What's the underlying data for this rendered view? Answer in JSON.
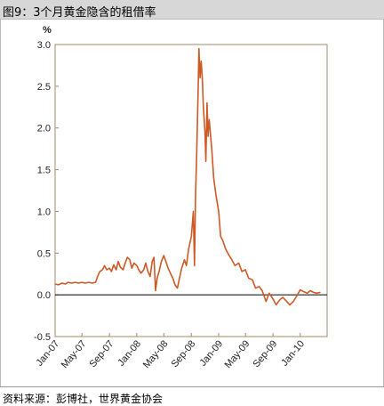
{
  "header": {
    "title": "图9：3个月黄金隐含的租借率"
  },
  "footer": {
    "source": "资料来源：彭博社，世界黄金协会"
  },
  "chart_data": {
    "type": "line",
    "unit_label": "%",
    "ylim": [
      -0.5,
      3.0
    ],
    "xlim": [
      "2007-01-01",
      "2010-05-01"
    ],
    "grid": false,
    "legend": "none",
    "zero_line": true,
    "line_color": "#cc5a25",
    "y_ticks": [
      "3.0",
      "2.5",
      "2.0",
      "1.5",
      "1.0",
      "0.5",
      "0.0",
      "-0.5"
    ],
    "y_tick_values": [
      3.0,
      2.5,
      2.0,
      1.5,
      1.0,
      0.5,
      0.0,
      -0.5
    ],
    "x_ticks": [
      "Jan-07",
      "May-07",
      "Sep-07",
      "Jan-08",
      "May-08",
      "Sep-08",
      "Jan-09",
      "May-09",
      "Sep-09",
      "Jan-10"
    ],
    "x_tick_dates": [
      "2007-01-01",
      "2007-05-01",
      "2007-09-01",
      "2008-01-01",
      "2008-05-01",
      "2008-09-01",
      "2009-01-01",
      "2009-05-01",
      "2009-09-01",
      "2010-01-01"
    ],
    "series": [
      {
        "points": [
          [
            "2007-01-01",
            0.13
          ],
          [
            "2007-01-15",
            0.12
          ],
          [
            "2007-02-01",
            0.14
          ],
          [
            "2007-02-15",
            0.13
          ],
          [
            "2007-03-01",
            0.15
          ],
          [
            "2007-03-15",
            0.14
          ],
          [
            "2007-04-01",
            0.15
          ],
          [
            "2007-04-15",
            0.14
          ],
          [
            "2007-05-01",
            0.15
          ],
          [
            "2007-05-15",
            0.14
          ],
          [
            "2007-06-01",
            0.15
          ],
          [
            "2007-06-15",
            0.14
          ],
          [
            "2007-07-01",
            0.15
          ],
          [
            "2007-07-10",
            0.22
          ],
          [
            "2007-07-20",
            0.28
          ],
          [
            "2007-08-01",
            0.3
          ],
          [
            "2007-08-10",
            0.35
          ],
          [
            "2007-08-20",
            0.3
          ],
          [
            "2007-09-01",
            0.32
          ],
          [
            "2007-09-10",
            0.28
          ],
          [
            "2007-09-20",
            0.36
          ],
          [
            "2007-10-01",
            0.3
          ],
          [
            "2007-10-10",
            0.4
          ],
          [
            "2007-10-20",
            0.33
          ],
          [
            "2007-11-01",
            0.3
          ],
          [
            "2007-11-10",
            0.38
          ],
          [
            "2007-11-20",
            0.45
          ],
          [
            "2007-12-01",
            0.42
          ],
          [
            "2007-12-10",
            0.32
          ],
          [
            "2007-12-20",
            0.38
          ],
          [
            "2008-01-01",
            0.35
          ],
          [
            "2008-01-10",
            0.3
          ],
          [
            "2008-01-20",
            0.26
          ],
          [
            "2008-02-01",
            0.3
          ],
          [
            "2008-02-10",
            0.38
          ],
          [
            "2008-02-20",
            0.28
          ],
          [
            "2008-03-01",
            0.22
          ],
          [
            "2008-03-10",
            0.4
          ],
          [
            "2008-03-18",
            0.45
          ],
          [
            "2008-03-25",
            0.05
          ],
          [
            "2008-04-01",
            0.2
          ],
          [
            "2008-04-10",
            0.28
          ],
          [
            "2008-04-20",
            0.4
          ],
          [
            "2008-05-01",
            0.47
          ],
          [
            "2008-05-10",
            0.4
          ],
          [
            "2008-05-20",
            0.32
          ],
          [
            "2008-06-01",
            0.25
          ],
          [
            "2008-06-10",
            0.2
          ],
          [
            "2008-06-20",
            0.12
          ],
          [
            "2008-07-01",
            0.08
          ],
          [
            "2008-07-10",
            0.2
          ],
          [
            "2008-07-20",
            0.32
          ],
          [
            "2008-08-01",
            0.42
          ],
          [
            "2008-08-10",
            0.35
          ],
          [
            "2008-08-20",
            0.55
          ],
          [
            "2008-09-01",
            0.7
          ],
          [
            "2008-09-10",
            1.0
          ],
          [
            "2008-09-15",
            0.35
          ],
          [
            "2008-09-20",
            1.2
          ],
          [
            "2008-09-25",
            1.7
          ],
          [
            "2008-10-01",
            2.4
          ],
          [
            "2008-10-05",
            2.95
          ],
          [
            "2008-10-10",
            2.6
          ],
          [
            "2008-10-15",
            2.8
          ],
          [
            "2008-10-20",
            2.6
          ],
          [
            "2008-10-25",
            2.25
          ],
          [
            "2008-11-01",
            1.95
          ],
          [
            "2008-11-05",
            1.6
          ],
          [
            "2008-11-10",
            2.3
          ],
          [
            "2008-11-15",
            1.9
          ],
          [
            "2008-11-20",
            2.1
          ],
          [
            "2008-12-01",
            1.75
          ],
          [
            "2008-12-10",
            1.4
          ],
          [
            "2008-12-20",
            1.2
          ],
          [
            "2009-01-01",
            1.0
          ],
          [
            "2009-01-10",
            0.7
          ],
          [
            "2009-01-20",
            0.65
          ],
          [
            "2009-02-01",
            0.55
          ],
          [
            "2009-02-15",
            0.48
          ],
          [
            "2009-03-01",
            0.42
          ],
          [
            "2009-03-15",
            0.35
          ],
          [
            "2009-04-01",
            0.38
          ],
          [
            "2009-04-15",
            0.28
          ],
          [
            "2009-05-01",
            0.3
          ],
          [
            "2009-05-15",
            0.2
          ],
          [
            "2009-06-01",
            0.18
          ],
          [
            "2009-06-15",
            0.08
          ],
          [
            "2009-07-01",
            0.1
          ],
          [
            "2009-07-15",
            0.05
          ],
          [
            "2009-08-01",
            -0.08
          ],
          [
            "2009-08-15",
            0.02
          ],
          [
            "2009-09-01",
            -0.05
          ],
          [
            "2009-09-15",
            -0.12
          ],
          [
            "2009-10-01",
            -0.06
          ],
          [
            "2009-10-15",
            -0.03
          ],
          [
            "2009-11-01",
            -0.08
          ],
          [
            "2009-11-15",
            -0.12
          ],
          [
            "2009-12-01",
            -0.08
          ],
          [
            "2009-12-15",
            -0.02
          ],
          [
            "2010-01-01",
            0.06
          ],
          [
            "2010-01-15",
            0.04
          ],
          [
            "2010-02-01",
            0.02
          ],
          [
            "2010-02-15",
            0.05
          ],
          [
            "2010-03-01",
            0.03
          ],
          [
            "2010-03-15",
            0.02
          ],
          [
            "2010-04-01",
            0.03
          ]
        ]
      }
    ]
  }
}
